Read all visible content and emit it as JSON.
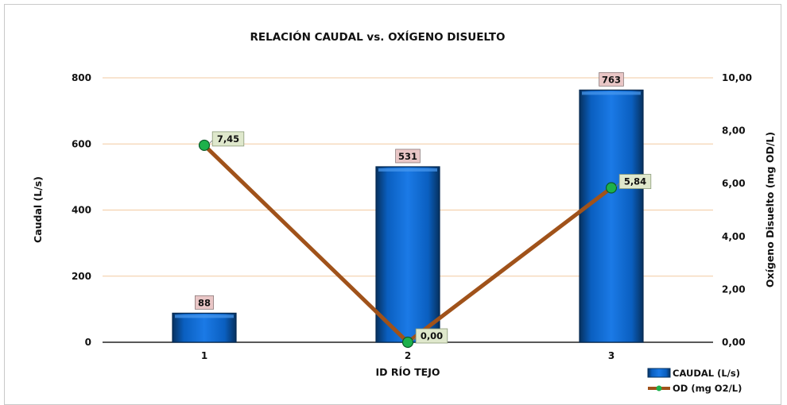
{
  "chart_data": {
    "type": "bar",
    "title": "RELACIÓN CAUDAL vs. OXÍGENO DISUELTO",
    "xlabel": "ID RÍO TEJO",
    "ylabel": "Caudal (L/s)",
    "y2label": "Oxígeno Disuelto (mg OD/L)",
    "categories": [
      "1",
      "2",
      "3"
    ],
    "ylim": [
      0,
      800
    ],
    "y2lim": [
      0,
      10
    ],
    "y_ticks": [
      "0",
      "200",
      "400",
      "600",
      "800"
    ],
    "y2_ticks": [
      "0,00",
      "2,00",
      "4,00",
      "6,00",
      "8,00",
      "10,00"
    ],
    "grid": "horizontal",
    "legend_position": "bottom-right",
    "series": [
      {
        "name": "CAUDAL (L/s)",
        "kind": "bar",
        "axis": "left",
        "values": [
          88,
          531,
          763
        ],
        "labels": [
          "88",
          "531",
          "763"
        ],
        "color": "#0b63c5",
        "label_bg": "#e9c6c6"
      },
      {
        "name": "OD (mg O2/L)",
        "kind": "line",
        "axis": "right",
        "values": [
          7.45,
          0.0,
          5.84
        ],
        "labels": [
          "7,45",
          "0,00",
          "5,84"
        ],
        "color": "#a0521a",
        "marker_color": "#1db14b",
        "label_bg": "#dfe8cc"
      }
    ]
  }
}
